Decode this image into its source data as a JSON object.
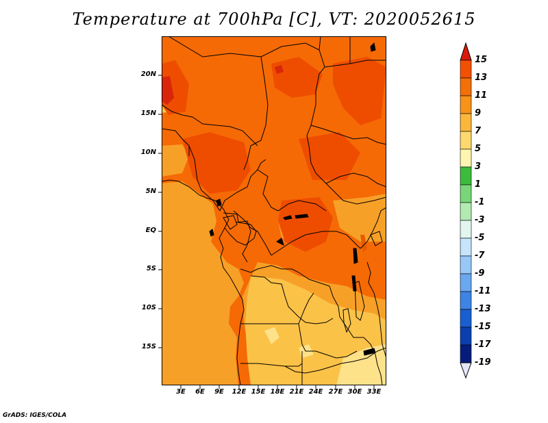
{
  "title": "Temperature at 700hPa [C], VT: 2020052615",
  "credit": "GrADS: IGES/COLA",
  "map": {
    "lat_labels": [
      "20N",
      "15N",
      "10N",
      "5N",
      "EQ",
      "5S",
      "10S",
      "15S"
    ],
    "lon_labels": [
      "3E",
      "6E",
      "9E",
      "12E",
      "15E",
      "18E",
      "21E",
      "24E",
      "27E",
      "30E",
      "33E"
    ],
    "field_colors": {
      "c15": "#d9260a",
      "c13": "#ee4d00",
      "c11": "#f56a05",
      "c9": "#f7a027",
      "c7": "#fbc248",
      "c5": "#fde28a"
    }
  },
  "colorbar": {
    "levels": [
      "15",
      "13",
      "11",
      "9",
      "7",
      "5",
      "3",
      "1",
      "-1",
      "-3",
      "-5",
      "-7",
      "-9",
      "-11",
      "-13",
      "-15",
      "-17",
      "-19"
    ],
    "colors": [
      "#d9260a",
      "#f25002",
      "#f36f07",
      "#f8931a",
      "#fab73c",
      "#fcd86e",
      "#fef5b0",
      "#3cbb3c",
      "#79d779",
      "#b2ebb2",
      "#e2f5ee",
      "#c6e4fb",
      "#98c8f7",
      "#6aa8ef",
      "#3d84e3",
      "#1a5fd0",
      "#0b3fb0",
      "#061c7c"
    ],
    "top_color": "#d91a0a",
    "bottom_color": "#e6e6fa"
  }
}
